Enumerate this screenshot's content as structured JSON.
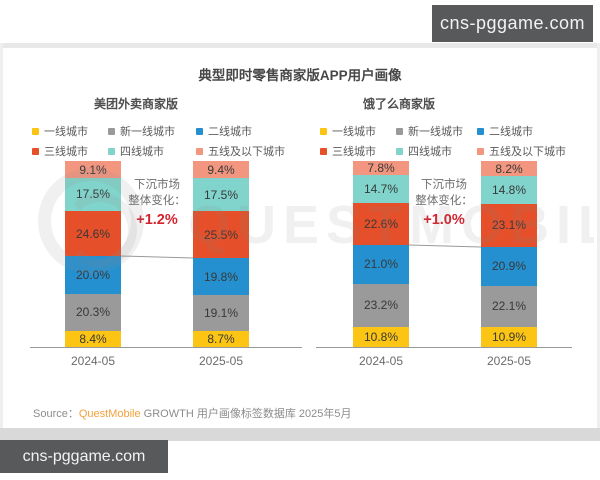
{
  "watermarks": {
    "top": "cns-pggame.com",
    "bottom": "cns-pggame.com"
  },
  "title": "典型即时零售商家版APP用户画像",
  "background_watermark": "QUESTMOBILE",
  "legend": {
    "items": [
      {
        "label": "一线城市",
        "color": "#FCC513"
      },
      {
        "label": "新一线城市",
        "color": "#9A9A9A"
      },
      {
        "label": "二线城市",
        "color": "#2590D0"
      },
      {
        "label": "三线城市",
        "color": "#E5502A"
      },
      {
        "label": "四线城市",
        "color": "#81D4CB"
      },
      {
        "label": "五线及以下城市",
        "color": "#F2967F"
      }
    ]
  },
  "source": {
    "label": "Source：",
    "brand": "QuestMobile",
    "text": " GROWTH 用户画像标签数据库 2025年5月"
  },
  "chart_data": [
    {
      "type": "bar",
      "stacked": true,
      "title": "美团外卖商家版",
      "categories": [
        "2024-05",
        "2025-05"
      ],
      "unit": "%",
      "ylim": [
        0,
        100
      ],
      "series": [
        {
          "name": "一线城市",
          "color": "#FCC513",
          "values": [
            8.4,
            8.7
          ],
          "labels": [
            "8.4%",
            "8.7%"
          ]
        },
        {
          "name": "新一线城市",
          "color": "#9A9A9A",
          "values": [
            20.3,
            19.1
          ],
          "labels": [
            "20.3%",
            "19.1%"
          ]
        },
        {
          "name": "二线城市",
          "color": "#2590D0",
          "values": [
            20.0,
            19.8
          ],
          "labels": [
            "20.0%",
            "19.8%"
          ]
        },
        {
          "name": "三线城市",
          "color": "#E5502A",
          "values": [
            24.6,
            25.5
          ],
          "labels": [
            "24.6%",
            "25.5%"
          ]
        },
        {
          "name": "四线城市",
          "color": "#81D4CB",
          "values": [
            17.5,
            17.5
          ],
          "labels": [
            "17.5%",
            "17.5%"
          ]
        },
        {
          "name": "五线及以下城市",
          "color": "#F2967F",
          "values": [
            9.1,
            9.4
          ],
          "labels": [
            "9.1%",
            "9.4%"
          ]
        }
      ],
      "annotation": {
        "line1": "下沉市场",
        "line2": "整体变化：",
        "value": "+1.2%",
        "value_color": "#D5232E"
      },
      "connector": {
        "above_series_count": 3
      }
    },
    {
      "type": "bar",
      "stacked": true,
      "title": "饿了么商家版",
      "categories": [
        "2024-05",
        "2025-05"
      ],
      "unit": "%",
      "ylim": [
        0,
        100
      ],
      "series": [
        {
          "name": "一线城市",
          "color": "#FCC513",
          "values": [
            10.8,
            10.9
          ],
          "labels": [
            "10.8%",
            "10.9%"
          ]
        },
        {
          "name": "新一线城市",
          "color": "#9A9A9A",
          "values": [
            23.2,
            22.1
          ],
          "labels": [
            "23.2%",
            "22.1%"
          ]
        },
        {
          "name": "二线城市",
          "color": "#2590D0",
          "values": [
            21.0,
            20.9
          ],
          "labels": [
            "21.0%",
            "20.9%"
          ]
        },
        {
          "name": "三线城市",
          "color": "#E5502A",
          "values": [
            22.6,
            23.1
          ],
          "labels": [
            "22.6%",
            "23.1%"
          ]
        },
        {
          "name": "四线城市",
          "color": "#81D4CB",
          "values": [
            14.7,
            14.8
          ],
          "labels": [
            "14.7%",
            "14.8%"
          ]
        },
        {
          "name": "五线及以下城市",
          "color": "#F2967F",
          "values": [
            7.8,
            8.2
          ],
          "labels": [
            "7.8%",
            "8.2%"
          ]
        }
      ],
      "annotation": {
        "line1": "下沉市场",
        "line2": "整体变化：",
        "value": "+1.0%",
        "value_color": "#D5232E"
      },
      "connector": {
        "above_series_count": 3
      }
    }
  ]
}
